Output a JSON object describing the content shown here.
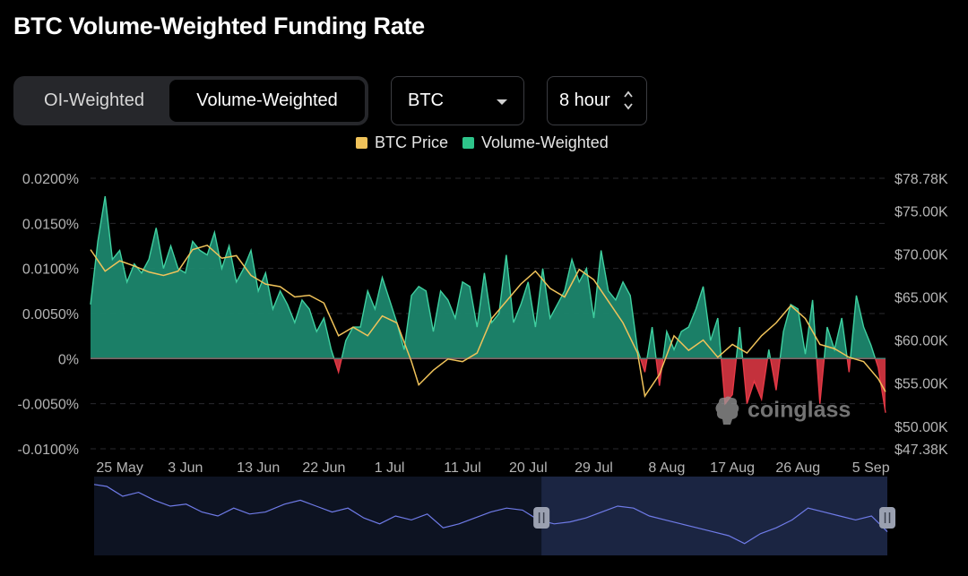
{
  "title": "BTC Volume-Weighted Funding Rate",
  "toggle": {
    "options": [
      "OI-Weighted",
      "Volume-Weighted"
    ],
    "selected": "Volume-Weighted"
  },
  "coin_select": {
    "value": "BTC",
    "icon": "chevron-down-icon"
  },
  "interval_select": {
    "value": "8 hour",
    "icon": "up-down-arrows-icon"
  },
  "legend": [
    {
      "label": "BTC Price",
      "color": "#f0c35a"
    },
    {
      "label": "Volume-Weighted",
      "color": "#2ec48a"
    }
  ],
  "watermark": "coinglass",
  "colors": {
    "positive_area": "#1d8a70",
    "positive_line": "#3fd0a0",
    "negative": "#e63946",
    "price_line": "#f0c35a",
    "navigator_line": "#6f7be8",
    "navigator_fill": "#0d1322",
    "navigator_selection": "#1b2542"
  },
  "chart_data": {
    "type": "area",
    "left_axis": {
      "unit": "%",
      "ticks": [
        "0.0200%",
        "0.0150%",
        "0.0100%",
        "0.0050%",
        "0%",
        "-0.0050%",
        "-0.0100%"
      ],
      "range": [
        -0.01,
        0.02
      ]
    },
    "right_axis": {
      "ticks": [
        "$78.78K",
        "$75.00K",
        "$70.00K",
        "$65.00K",
        "$60.00K",
        "$55.00K",
        "$50.00K",
        "$47.38K"
      ],
      "range": [
        47.38,
        78.78
      ]
    },
    "x_ticks": [
      "25 May",
      "3 Jun",
      "13 Jun",
      "22 Jun",
      "1 Jul",
      "11 Jul",
      "20 Jul",
      "29 Jul",
      "8 Aug",
      "17 Aug",
      "26 Aug",
      "5 Sep"
    ],
    "x_start": "2024-05-21",
    "x_end": "2024-09-07",
    "series": [
      {
        "name": "Volume-Weighted",
        "unit": "%",
        "points": [
          [
            "2024-05-21",
            0.006
          ],
          [
            "2024-05-22",
            0.013
          ],
          [
            "2024-05-23",
            0.018
          ],
          [
            "2024-05-24",
            0.011
          ],
          [
            "2024-05-25",
            0.012
          ],
          [
            "2024-05-26",
            0.0085
          ],
          [
            "2024-05-27",
            0.0105
          ],
          [
            "2024-05-28",
            0.0095
          ],
          [
            "2024-05-29",
            0.011
          ],
          [
            "2024-05-30",
            0.0145
          ],
          [
            "2024-05-31",
            0.01
          ],
          [
            "2024-06-01",
            0.0125
          ],
          [
            "2024-06-02",
            0.01
          ],
          [
            "2024-06-03",
            0.0095
          ],
          [
            "2024-06-04",
            0.013
          ],
          [
            "2024-06-05",
            0.012
          ],
          [
            "2024-06-06",
            0.0115
          ],
          [
            "2024-06-07",
            0.014
          ],
          [
            "2024-06-08",
            0.01
          ],
          [
            "2024-06-09",
            0.0125
          ],
          [
            "2024-06-10",
            0.0085
          ],
          [
            "2024-06-11",
            0.01
          ],
          [
            "2024-06-12",
            0.012
          ],
          [
            "2024-06-13",
            0.0075
          ],
          [
            "2024-06-14",
            0.0095
          ],
          [
            "2024-06-15",
            0.0055
          ],
          [
            "2024-06-16",
            0.0075
          ],
          [
            "2024-06-17",
            0.006
          ],
          [
            "2024-06-18",
            0.004
          ],
          [
            "2024-06-19",
            0.0065
          ],
          [
            "2024-06-20",
            0.0055
          ],
          [
            "2024-06-21",
            0.003
          ],
          [
            "2024-06-22",
            0.0045
          ],
          [
            "2024-06-23",
            0.001
          ],
          [
            "2024-06-24",
            -0.0015
          ],
          [
            "2024-06-25",
            0.002
          ],
          [
            "2024-06-26",
            0.0035
          ],
          [
            "2024-06-27",
            0.0035
          ],
          [
            "2024-06-28",
            0.0075
          ],
          [
            "2024-06-29",
            0.0055
          ],
          [
            "2024-06-30",
            0.009
          ],
          [
            "2024-07-01",
            0.0065
          ],
          [
            "2024-07-02",
            0.004
          ],
          [
            "2024-07-03",
            0.001
          ],
          [
            "2024-07-04",
            0.007
          ],
          [
            "2024-07-05",
            0.008
          ],
          [
            "2024-07-06",
            0.0075
          ],
          [
            "2024-07-07",
            0.003
          ],
          [
            "2024-07-08",
            0.0075
          ],
          [
            "2024-07-09",
            0.0065
          ],
          [
            "2024-07-10",
            0.0045
          ],
          [
            "2024-07-11",
            0.0085
          ],
          [
            "2024-07-12",
            0.008
          ],
          [
            "2024-07-13",
            0.0035
          ],
          [
            "2024-07-14",
            0.0095
          ],
          [
            "2024-07-15",
            0.004
          ],
          [
            "2024-07-16",
            0.005
          ],
          [
            "2024-07-17",
            0.0115
          ],
          [
            "2024-07-18",
            0.004
          ],
          [
            "2024-07-19",
            0.006
          ],
          [
            "2024-07-20",
            0.0085
          ],
          [
            "2024-07-21",
            0.0035
          ],
          [
            "2024-07-22",
            0.01
          ],
          [
            "2024-07-23",
            0.0045
          ],
          [
            "2024-07-24",
            0.006
          ],
          [
            "2024-07-25",
            0.0075
          ],
          [
            "2024-07-26",
            0.011
          ],
          [
            "2024-07-27",
            0.0085
          ],
          [
            "2024-07-28",
            0.01
          ],
          [
            "2024-07-29",
            0.0045
          ],
          [
            "2024-07-30",
            0.012
          ],
          [
            "2024-07-31",
            0.0075
          ],
          [
            "2024-08-01",
            0.0065
          ],
          [
            "2024-08-02",
            0.0085
          ],
          [
            "2024-08-03",
            0.007
          ],
          [
            "2024-08-04",
            0.001
          ],
          [
            "2024-08-05",
            -0.0015
          ],
          [
            "2024-08-06",
            0.0035
          ],
          [
            "2024-08-07",
            -0.003
          ],
          [
            "2024-08-08",
            0.003
          ],
          [
            "2024-08-09",
            0.001
          ],
          [
            "2024-08-10",
            0.003
          ],
          [
            "2024-08-11",
            0.0035
          ],
          [
            "2024-08-12",
            0.0055
          ],
          [
            "2024-08-13",
            0.008
          ],
          [
            "2024-08-14",
            0.002
          ],
          [
            "2024-08-15",
            0.0045
          ],
          [
            "2024-08-16",
            -0.005
          ],
          [
            "2024-08-17",
            -0.004
          ],
          [
            "2024-08-18",
            0.0035
          ],
          [
            "2024-08-19",
            -0.005
          ],
          [
            "2024-08-20",
            -0.0025
          ],
          [
            "2024-08-21",
            -0.0045
          ],
          [
            "2024-08-22",
            0.001
          ],
          [
            "2024-08-23",
            -0.0035
          ],
          [
            "2024-08-24",
            0.003
          ],
          [
            "2024-08-25",
            0.006
          ],
          [
            "2024-08-26",
            0.0055
          ],
          [
            "2024-08-27",
            0.0005
          ],
          [
            "2024-08-28",
            0.0065
          ],
          [
            "2024-08-29",
            -0.005
          ],
          [
            "2024-08-30",
            0.0035
          ],
          [
            "2024-08-31",
            0.001
          ],
          [
            "2024-09-01",
            0.0045
          ],
          [
            "2024-09-02",
            -0.0015
          ],
          [
            "2024-09-03",
            0.007
          ],
          [
            "2024-09-04",
            0.0035
          ],
          [
            "2024-09-05",
            0.0015
          ],
          [
            "2024-09-06",
            -0.001
          ],
          [
            "2024-09-07",
            -0.006
          ]
        ]
      },
      {
        "name": "BTC Price",
        "unit": "$K",
        "points": [
          [
            "2024-05-21",
            70.5
          ],
          [
            "2024-05-23",
            68.0
          ],
          [
            "2024-05-25",
            69.2
          ],
          [
            "2024-05-27",
            68.6
          ],
          [
            "2024-05-29",
            67.9
          ],
          [
            "2024-05-31",
            67.5
          ],
          [
            "2024-06-02",
            68.0
          ],
          [
            "2024-06-04",
            70.5
          ],
          [
            "2024-06-06",
            71.0
          ],
          [
            "2024-06-08",
            69.5
          ],
          [
            "2024-06-10",
            69.8
          ],
          [
            "2024-06-12",
            67.5
          ],
          [
            "2024-06-14",
            66.5
          ],
          [
            "2024-06-16",
            66.2
          ],
          [
            "2024-06-18",
            65.0
          ],
          [
            "2024-06-20",
            65.2
          ],
          [
            "2024-06-22",
            64.3
          ],
          [
            "2024-06-24",
            60.5
          ],
          [
            "2024-06-26",
            61.5
          ],
          [
            "2024-06-28",
            60.5
          ],
          [
            "2024-06-30",
            62.8
          ],
          [
            "2024-07-02",
            62.0
          ],
          [
            "2024-07-04",
            57.5
          ],
          [
            "2024-07-05",
            54.8
          ],
          [
            "2024-07-07",
            56.5
          ],
          [
            "2024-07-09",
            57.8
          ],
          [
            "2024-07-11",
            57.5
          ],
          [
            "2024-07-13",
            58.5
          ],
          [
            "2024-07-15",
            62.5
          ],
          [
            "2024-07-17",
            64.5
          ],
          [
            "2024-07-19",
            66.5
          ],
          [
            "2024-07-21",
            68.0
          ],
          [
            "2024-07-23",
            66.0
          ],
          [
            "2024-07-25",
            65.0
          ],
          [
            "2024-07-27",
            68.2
          ],
          [
            "2024-07-29",
            67.0
          ],
          [
            "2024-07-31",
            64.5
          ],
          [
            "2024-08-02",
            62.0
          ],
          [
            "2024-08-04",
            58.5
          ],
          [
            "2024-08-05",
            53.5
          ],
          [
            "2024-08-07",
            56.0
          ],
          [
            "2024-08-09",
            60.5
          ],
          [
            "2024-08-11",
            58.8
          ],
          [
            "2024-08-13",
            60.0
          ],
          [
            "2024-08-15",
            58.0
          ],
          [
            "2024-08-17",
            59.5
          ],
          [
            "2024-08-19",
            58.5
          ],
          [
            "2024-08-21",
            60.5
          ],
          [
            "2024-08-23",
            62.0
          ],
          [
            "2024-08-25",
            64.0
          ],
          [
            "2024-08-27",
            62.5
          ],
          [
            "2024-08-29",
            59.5
          ],
          [
            "2024-08-31",
            59.0
          ],
          [
            "2024-09-02",
            58.0
          ],
          [
            "2024-09-04",
            57.5
          ],
          [
            "2024-09-06",
            55.5
          ],
          [
            "2024-09-07",
            54.0
          ]
        ]
      }
    ],
    "navigator": {
      "points": [
        [
          "2024-01-01",
          62
        ],
        [
          "2024-01-05",
          61.5
        ],
        [
          "2024-01-10",
          59
        ],
        [
          "2024-01-15",
          60
        ],
        [
          "2024-01-20",
          58
        ],
        [
          "2024-01-25",
          56.5
        ],
        [
          "2024-01-30",
          57
        ],
        [
          "2024-02-04",
          55
        ],
        [
          "2024-02-09",
          54
        ],
        [
          "2024-02-14",
          56
        ],
        [
          "2024-02-19",
          54.5
        ],
        [
          "2024-02-24",
          55
        ],
        [
          "2024-03-01",
          57
        ],
        [
          "2024-03-06",
          58
        ],
        [
          "2024-03-11",
          56.5
        ],
        [
          "2024-03-16",
          55
        ],
        [
          "2024-03-21",
          56
        ],
        [
          "2024-03-26",
          53.5
        ],
        [
          "2024-03-31",
          52
        ],
        [
          "2024-04-05",
          54
        ],
        [
          "2024-04-10",
          53
        ],
        [
          "2024-04-15",
          54.5
        ],
        [
          "2024-04-20",
          51
        ],
        [
          "2024-04-25",
          52
        ],
        [
          "2024-04-30",
          53.5
        ],
        [
          "2024-05-05",
          55
        ],
        [
          "2024-05-10",
          56
        ],
        [
          "2024-05-15",
          55.5
        ],
        [
          "2024-05-20",
          53
        ],
        [
          "2024-05-25",
          52
        ],
        [
          "2024-05-30",
          52.5
        ],
        [
          "2024-06-04",
          53.5
        ],
        [
          "2024-06-09",
          55
        ],
        [
          "2024-06-14",
          56.5
        ],
        [
          "2024-06-19",
          56
        ],
        [
          "2024-06-24",
          54
        ],
        [
          "2024-06-29",
          53
        ],
        [
          "2024-07-04",
          52
        ],
        [
          "2024-07-09",
          51
        ],
        [
          "2024-07-14",
          50
        ],
        [
          "2024-07-19",
          49
        ],
        [
          "2024-07-24",
          47
        ],
        [
          "2024-07-29",
          49.5
        ],
        [
          "2024-08-03",
          51
        ],
        [
          "2024-08-08",
          53
        ],
        [
          "2024-08-13",
          56
        ],
        [
          "2024-08-18",
          55
        ],
        [
          "2024-08-23",
          54
        ],
        [
          "2024-08-28",
          53
        ],
        [
          "2024-09-02",
          54
        ],
        [
          "2024-09-07",
          50
        ]
      ],
      "range": [
        44,
        64
      ],
      "x_start": "2024-01-01",
      "x_end": "2024-09-07",
      "selection": [
        "2024-05-21",
        "2024-09-07"
      ]
    }
  }
}
